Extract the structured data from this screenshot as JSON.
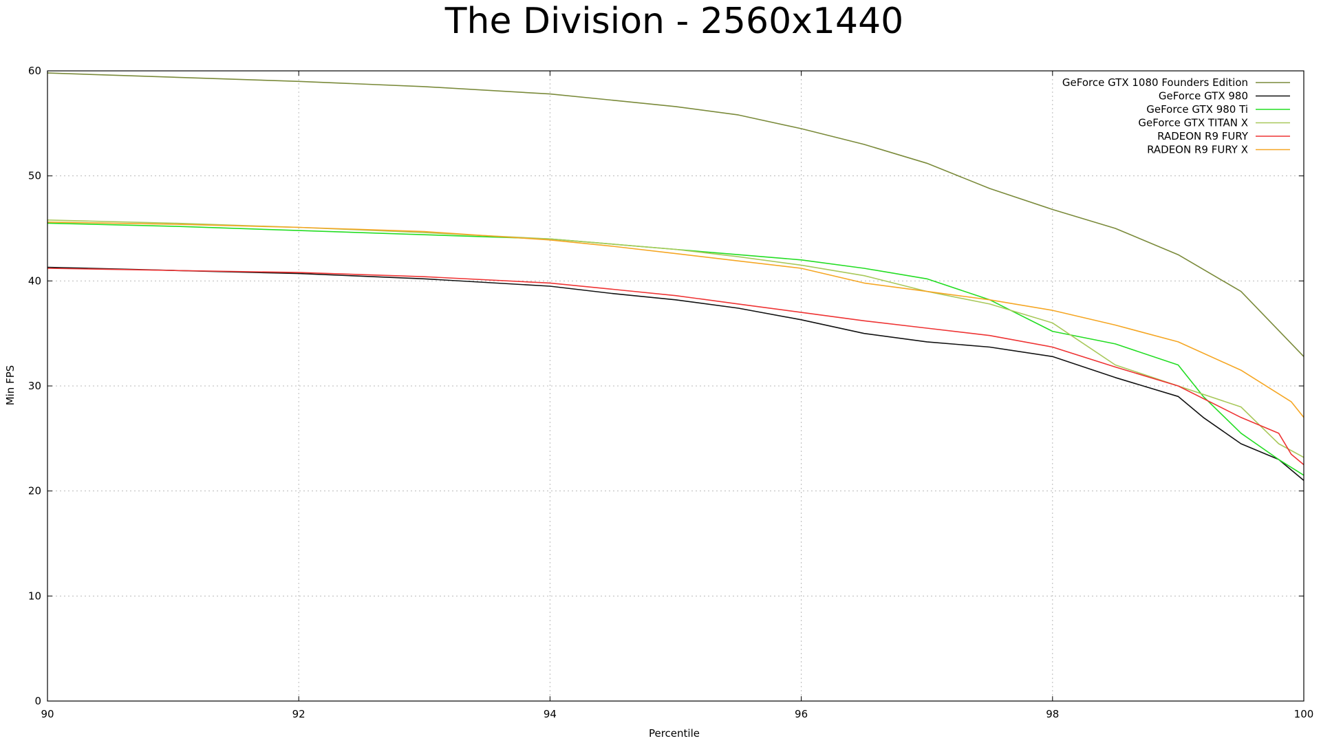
{
  "chart_data": {
    "type": "line",
    "title": "The Division - 2560x1440",
    "xlabel": "Percentile",
    "ylabel": "Min FPS",
    "xlim": [
      90,
      100
    ],
    "ylim": [
      0,
      60
    ],
    "x_ticks": [
      90,
      92,
      94,
      96,
      98,
      100
    ],
    "y_ticks": [
      0,
      10,
      20,
      30,
      40,
      50,
      60
    ],
    "grid": true,
    "legend_position": "top-right",
    "series": [
      {
        "name": "GeForce GTX 1080 Founders Edition",
        "color": "#7a8a3a",
        "x": [
          90,
          91,
          92,
          93,
          94,
          94.5,
          95,
          95.5,
          96,
          96.5,
          97,
          97.5,
          98,
          98.5,
          99,
          99.5,
          100
        ],
        "y": [
          59.8,
          59.4,
          59.0,
          58.5,
          57.8,
          57.2,
          56.6,
          55.8,
          54.5,
          53.0,
          51.2,
          48.8,
          46.8,
          45.0,
          42.5,
          39.0,
          32.8
        ]
      },
      {
        "name": "GeForce GTX 980",
        "color": "#111111",
        "x": [
          90,
          91,
          92,
          93,
          94,
          94.5,
          95,
          95.5,
          96,
          96.5,
          97,
          97.5,
          98,
          98.5,
          99,
          99.2,
          99.5,
          99.8,
          100
        ],
        "y": [
          41.3,
          41.0,
          40.7,
          40.2,
          39.5,
          38.8,
          38.2,
          37.4,
          36.3,
          35.0,
          34.2,
          33.7,
          32.8,
          30.8,
          29.0,
          27.0,
          24.5,
          23.0,
          21.0
        ]
      },
      {
        "name": "GeForce GTX 980 Ti",
        "color": "#22dd22",
        "x": [
          90,
          91,
          92,
          93,
          94,
          94.5,
          95,
          95.5,
          96,
          96.5,
          97,
          97.5,
          98,
          98.5,
          99,
          99.2,
          99.5,
          99.8,
          100
        ],
        "y": [
          45.5,
          45.2,
          44.8,
          44.4,
          44.0,
          43.5,
          43.0,
          42.5,
          42.0,
          41.2,
          40.2,
          38.2,
          35.2,
          34.0,
          32.0,
          29.0,
          25.5,
          23.0,
          21.5
        ]
      },
      {
        "name": "GeForce GTX TITAN X",
        "color": "#a8c85a",
        "x": [
          90,
          91,
          92,
          93,
          94,
          94.5,
          95,
          95.5,
          96,
          96.5,
          97,
          97.5,
          98,
          98.5,
          99,
          99.5,
          99.8,
          100
        ],
        "y": [
          45.8,
          45.5,
          45.1,
          44.6,
          44.0,
          43.5,
          43.0,
          42.3,
          41.5,
          40.5,
          39.0,
          37.8,
          36.0,
          32.0,
          30.0,
          28.0,
          24.5,
          23.2
        ]
      },
      {
        "name": "RADEON R9 FURY",
        "color": "#ee3333",
        "x": [
          90,
          91,
          92,
          93,
          94,
          94.5,
          95,
          95.5,
          96,
          96.5,
          97,
          97.5,
          98,
          98.5,
          99,
          99.5,
          99.8,
          99.9,
          100
        ],
        "y": [
          41.2,
          41.0,
          40.8,
          40.4,
          39.8,
          39.2,
          38.6,
          37.8,
          37.0,
          36.2,
          35.5,
          34.8,
          33.7,
          31.8,
          30.0,
          27.0,
          25.5,
          23.5,
          22.5
        ]
      },
      {
        "name": "RADEON R9 FURY X",
        "color": "#f5a623",
        "x": [
          90,
          91,
          92,
          93,
          94,
          94.5,
          95,
          95.5,
          96,
          96.5,
          97,
          97.5,
          98,
          98.5,
          99,
          99.5,
          99.9,
          100
        ],
        "y": [
          45.6,
          45.4,
          45.1,
          44.7,
          43.9,
          43.3,
          42.6,
          41.9,
          41.2,
          39.8,
          39.0,
          38.2,
          37.2,
          35.8,
          34.2,
          31.5,
          28.5,
          27.0
        ]
      }
    ]
  }
}
